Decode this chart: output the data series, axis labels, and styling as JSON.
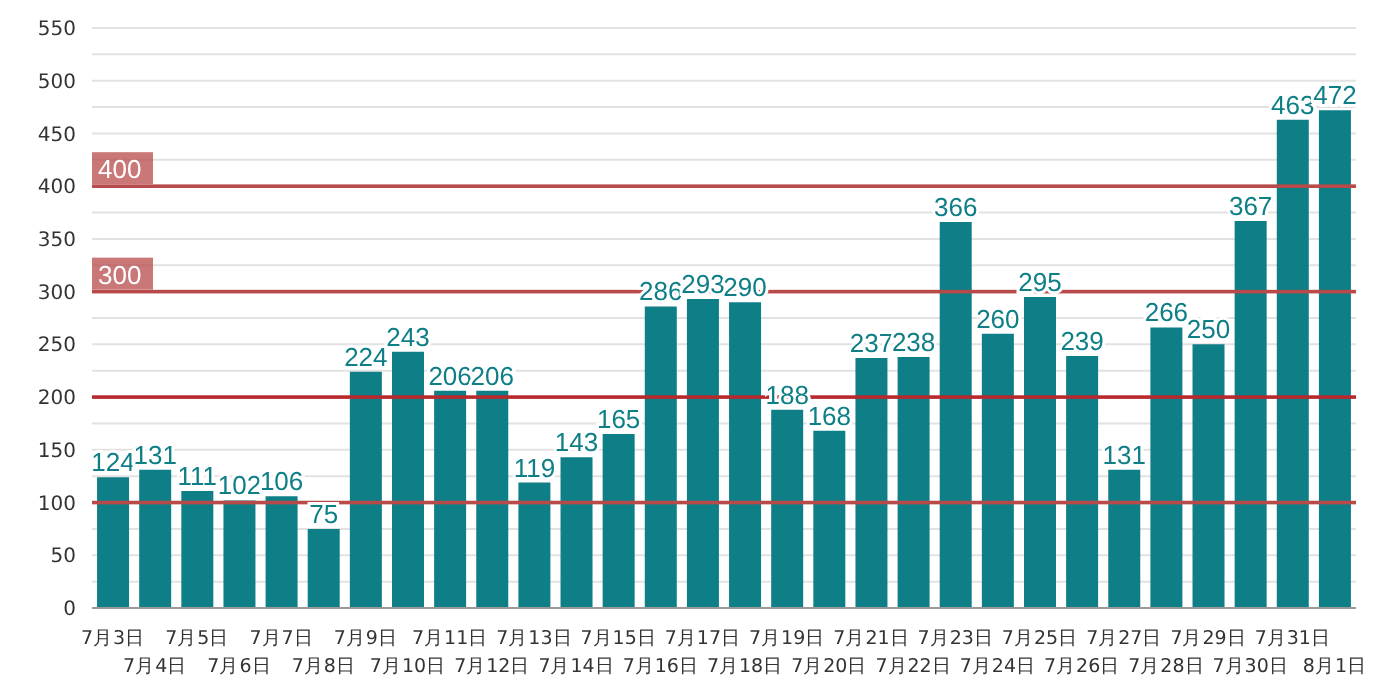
{
  "chart_data": {
    "type": "bar",
    "categories": [
      "7月3日",
      "7月4日",
      "7月5日",
      "7月6日",
      "7月7日",
      "7月8日",
      "7月9日",
      "7月10日",
      "7月11日",
      "7月12日",
      "7月13日",
      "7月14日",
      "7月15日",
      "7月16日",
      "7月17日",
      "7月18日",
      "7月19日",
      "7月20日",
      "7月21日",
      "7月22日",
      "7月23日",
      "7月24日",
      "7月25日",
      "7月26日",
      "7月27日",
      "7月28日",
      "7月29日",
      "7月30日",
      "7月31日",
      "8月1日"
    ],
    "values": [
      124,
      131,
      111,
      102,
      106,
      75,
      224,
      243,
      206,
      206,
      119,
      143,
      165,
      286,
      293,
      290,
      188,
      168,
      237,
      238,
      366,
      260,
      295,
      239,
      131,
      266,
      250,
      367,
      463,
      472
    ],
    "color": "#0e7f86",
    "data_labels": true,
    "ylim": [
      0,
      550
    ],
    "yticks": [
      0,
      {
        "value": 25,
        "label": null
      },
      50,
      {
        "value": 75,
        "label": null
      },
      100,
      {
        "value": 125,
        "label": null
      },
      150,
      {
        "value": 175,
        "label": null
      },
      200,
      {
        "value": 225,
        "label": null
      },
      250,
      {
        "value": 275,
        "label": null
      },
      300,
      {
        "value": 325,
        "label": null
      },
      350,
      {
        "value": 375,
        "label": null
      },
      400,
      {
        "value": 425,
        "label": null
      },
      450,
      {
        "value": 475,
        "label": null
      },
      500,
      {
        "value": 525,
        "label": null
      },
      550
    ],
    "grid": "y",
    "ref_lines": [
      {
        "axis": "y",
        "value": 100,
        "color": "#b84a4a"
      },
      {
        "axis": "y",
        "value": 200,
        "color": "#b8292e"
      },
      {
        "axis": "y",
        "value": 300,
        "label": "300",
        "color": "#b84a4a"
      },
      {
        "axis": "y",
        "value": 400,
        "label": "400",
        "color": "#b84a4a"
      }
    ]
  }
}
